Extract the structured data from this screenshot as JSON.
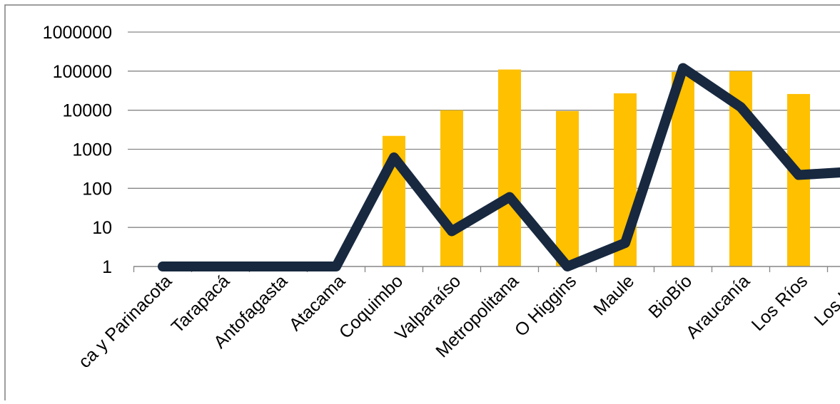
{
  "chart_data": {
    "type": "bar",
    "y_scale": "log",
    "ylim": [
      1,
      1000000
    ],
    "y_ticks": [
      "1",
      "10",
      "100",
      "1000",
      "10000",
      "100000",
      "1000000"
    ],
    "grid": true,
    "categories": [
      "Arica y Parinacota",
      "Tarapacá",
      "Antofagasta",
      "Atacama",
      "Coquimbo",
      "Valparaíso",
      "Metropolitana",
      "O Higgins",
      "Maule",
      "BioBío",
      "Araucanía",
      "Los Ríos",
      "Los Lagos"
    ],
    "category_labels_shown": [
      "ca y Parinacota",
      "Tarapacá",
      "Antofagasta",
      "Atacama",
      "Coquimbo",
      "Valparaíso",
      "Metropolitana",
      "O Higgins",
      "Maule",
      "BioBío",
      "Araucanía",
      "Los Ríos",
      "Los Lag"
    ],
    "series": [
      {
        "kind": "bar",
        "color": "#FFC000",
        "values": [
          null,
          null,
          null,
          null,
          2200,
          10000,
          110000,
          9500,
          27000,
          95000,
          100000,
          26000,
          null
        ]
      },
      {
        "kind": "line",
        "color": "#17283F",
        "values": [
          1,
          1,
          1,
          1,
          620,
          8,
          60,
          1,
          4,
          120000,
          12000,
          220,
          270
        ]
      }
    ]
  }
}
